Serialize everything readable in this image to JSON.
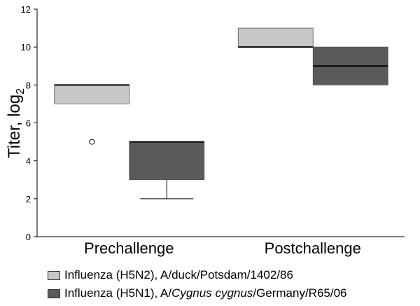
{
  "chart_data": {
    "type": "box",
    "ylabel": "Titer, log",
    "ylabel_sub": "2",
    "ylim": [
      0,
      12
    ],
    "yticks": [
      0,
      2,
      4,
      6,
      8,
      10,
      12
    ],
    "categories": [
      "Prechallenge",
      "Postchallenge"
    ],
    "grid": false,
    "legend_position": "bottom",
    "series": [
      {
        "name": "Influenza (H5N2), A/duck/Potsdam/1402/86",
        "name_parts": [
          "Influenza (H5N2), A/duck/Potsdam/1402/86"
        ],
        "color": "#c8c8c8",
        "boxes": [
          {
            "category": "Prechallenge",
            "q1": 7,
            "median": 8,
            "q3": 8,
            "whisker_low": null,
            "whisker_high": null,
            "outliers": [
              5
            ]
          },
          {
            "category": "Postchallenge",
            "q1": 10,
            "median": 10,
            "q3": 11,
            "whisker_low": null,
            "whisker_high": null,
            "outliers": []
          }
        ]
      },
      {
        "name": "Influenza (H5N1), A/Cygnus cygnus/Germany/R65/06",
        "name_parts": [
          "Influenza (H5N1), A/",
          "Cygnus cygnus",
          "/Germany/R65/06"
        ],
        "color": "#5a5a5a",
        "boxes": [
          {
            "category": "Prechallenge",
            "q1": 3,
            "median": 5,
            "q3": 5,
            "whisker_low": 2,
            "whisker_high": null,
            "outliers": []
          },
          {
            "category": "Postchallenge",
            "q1": 8,
            "median": 9,
            "q3": 10,
            "whisker_low": null,
            "whisker_high": null,
            "outliers": []
          }
        ]
      }
    ]
  }
}
